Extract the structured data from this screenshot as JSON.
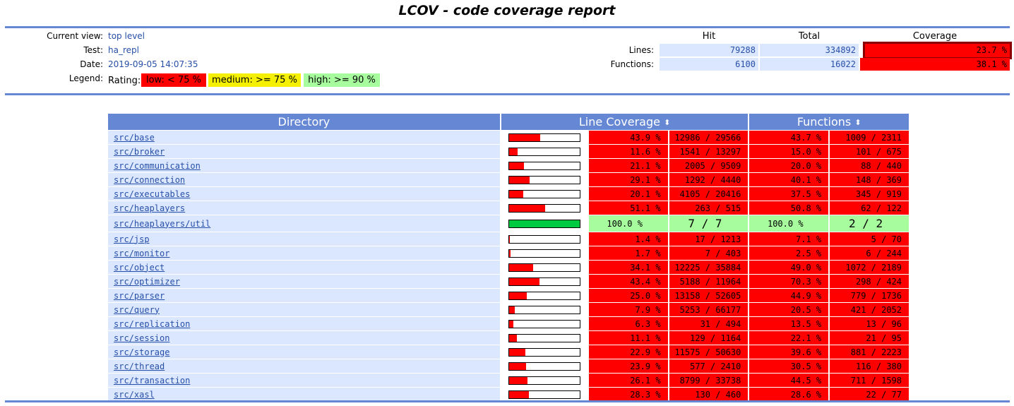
{
  "header": {
    "title": "LCOV - code coverage report"
  },
  "info": [
    {
      "label": "Current view:",
      "value": "top level"
    },
    {
      "label": "Test:",
      "value": "ha_repl"
    },
    {
      "label": "Date:",
      "value": "2019-09-05 14:07:35"
    }
  ],
  "legend": {
    "label": "Legend:",
    "rating": "Rating:",
    "low": "low: < 75 %",
    "medium": "medium: >= 75 %",
    "high": "high: >= 90 %",
    "colors": {
      "low": "#ff0000",
      "medium": "#f5f000",
      "high": "#a7fc9d"
    }
  },
  "summary": {
    "headers": {
      "hit": "Hit",
      "total": "Total",
      "coverage": "Coverage"
    },
    "lines": {
      "label": "Lines:",
      "hit": "79288",
      "total": "334892",
      "coverage": "23.7 %"
    },
    "functions": {
      "label": "Functions:",
      "hit": "6100",
      "total": "16022",
      "coverage": "38.1 %"
    }
  },
  "table": {
    "headers": {
      "directory": "Directory",
      "line_coverage": "Line Coverage",
      "functions": "Functions",
      "sort_icon": "⬍"
    },
    "rows": [
      {
        "dir": "src/base",
        "line_pct": "43.9 %",
        "line_frac": 0.439,
        "lines": "12986 / 29566",
        "func_pct": "43.7 %",
        "funcs": "1009 / 2311",
        "rating": "low"
      },
      {
        "dir": "src/broker",
        "line_pct": "11.6 %",
        "line_frac": 0.116,
        "lines": "1541 / 13297",
        "func_pct": "15.0 %",
        "funcs": "101 / 675",
        "rating": "low"
      },
      {
        "dir": "src/communication",
        "line_pct": "21.1 %",
        "line_frac": 0.211,
        "lines": "2005 / 9509",
        "func_pct": "20.0 %",
        "funcs": "88 / 440",
        "rating": "low"
      },
      {
        "dir": "src/connection",
        "line_pct": "29.1 %",
        "line_frac": 0.291,
        "lines": "1292 / 4440",
        "func_pct": "40.1 %",
        "funcs": "148 / 369",
        "rating": "low"
      },
      {
        "dir": "src/executables",
        "line_pct": "20.1 %",
        "line_frac": 0.201,
        "lines": "4105 / 20416",
        "func_pct": "37.5 %",
        "funcs": "345 / 919",
        "rating": "low"
      },
      {
        "dir": "src/heaplayers",
        "line_pct": "51.1 %",
        "line_frac": 0.511,
        "lines": "263 / 515",
        "func_pct": "50.8 %",
        "funcs": "62 / 122",
        "rating": "low"
      },
      {
        "dir": "src/heaplayers/util",
        "line_pct": "100.0 %",
        "line_frac": 1.0,
        "lines": "7 / 7",
        "func_pct": "100.0 %",
        "funcs": "2 / 2",
        "rating": "hi"
      },
      {
        "dir": "src/jsp",
        "line_pct": "1.4 %",
        "line_frac": 0.014,
        "lines": "17 / 1213",
        "func_pct": "7.1 %",
        "funcs": "5 / 70",
        "rating": "low"
      },
      {
        "dir": "src/monitor",
        "line_pct": "1.7 %",
        "line_frac": 0.017,
        "lines": "7 / 403",
        "func_pct": "2.5 %",
        "funcs": "6 / 244",
        "rating": "low"
      },
      {
        "dir": "src/object",
        "line_pct": "34.1 %",
        "line_frac": 0.341,
        "lines": "12225 / 35884",
        "func_pct": "49.0 %",
        "funcs": "1072 / 2189",
        "rating": "low"
      },
      {
        "dir": "src/optimizer",
        "line_pct": "43.4 %",
        "line_frac": 0.434,
        "lines": "5188 / 11964",
        "func_pct": "70.3 %",
        "funcs": "298 / 424",
        "rating": "low"
      },
      {
        "dir": "src/parser",
        "line_pct": "25.0 %",
        "line_frac": 0.25,
        "lines": "13158 / 52605",
        "func_pct": "44.9 %",
        "funcs": "779 / 1736",
        "rating": "low"
      },
      {
        "dir": "src/query",
        "line_pct": "7.9 %",
        "line_frac": 0.079,
        "lines": "5253 / 66177",
        "func_pct": "20.5 %",
        "funcs": "421 / 2052",
        "rating": "low"
      },
      {
        "dir": "src/replication",
        "line_pct": "6.3 %",
        "line_frac": 0.063,
        "lines": "31 / 494",
        "func_pct": "13.5 %",
        "funcs": "13 / 96",
        "rating": "low"
      },
      {
        "dir": "src/session",
        "line_pct": "11.1 %",
        "line_frac": 0.111,
        "lines": "129 / 1164",
        "func_pct": "22.1 %",
        "funcs": "21 / 95",
        "rating": "low"
      },
      {
        "dir": "src/storage",
        "line_pct": "22.9 %",
        "line_frac": 0.229,
        "lines": "11575 / 50630",
        "func_pct": "39.6 %",
        "funcs": "881 / 2223",
        "rating": "low"
      },
      {
        "dir": "src/thread",
        "line_pct": "23.9 %",
        "line_frac": 0.239,
        "lines": "577 / 2410",
        "func_pct": "30.5 %",
        "funcs": "116 / 380",
        "rating": "low"
      },
      {
        "dir": "src/transaction",
        "line_pct": "26.1 %",
        "line_frac": 0.261,
        "lines": "8799 / 33738",
        "func_pct": "44.5 %",
        "funcs": "711 / 1598",
        "rating": "low"
      },
      {
        "dir": "src/xasl",
        "line_pct": "28.3 %",
        "line_frac": 0.283,
        "lines": "130 / 460",
        "func_pct": "28.6 %",
        "funcs": "22 / 77",
        "rating": "low"
      }
    ]
  },
  "colors": {
    "bar_low": "#ff0000",
    "bar_hi": "#00cb40"
  }
}
